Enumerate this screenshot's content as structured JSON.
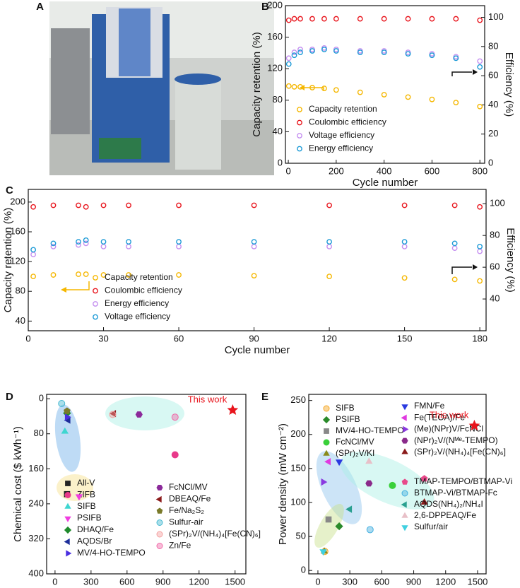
{
  "photo": {
    "label": "A"
  },
  "chart_data": [
    {
      "label": "B",
      "type": "scatter",
      "xlabel": "Cycle number",
      "ylabel": "Capacity retention (%)",
      "y2label": "Efficiency (%)",
      "xlim": [
        -12,
        820
      ],
      "xticks": [
        0,
        200,
        400,
        600,
        800
      ],
      "ylim": [
        0,
        200
      ],
      "yticks": [
        0,
        40,
        80,
        120,
        160,
        200
      ],
      "y2lim": [
        0,
        108
      ],
      "y2ticks": [
        0,
        20,
        40,
        60,
        80,
        100
      ],
      "marker": "open-circle",
      "x": [
        2,
        25,
        50,
        100,
        150,
        200,
        300,
        400,
        500,
        600,
        700,
        800
      ],
      "series": [
        {
          "name": "Capacity retention",
          "color": "#f5b700",
          "values": [
            98,
            97,
            97,
            96,
            95,
            93,
            90,
            87,
            84,
            81,
            77,
            72
          ]
        },
        {
          "name": "Coulombic efficiency",
          "color": "#e8141c",
          "axis": "y2",
          "values": [
            98,
            99,
            99,
            99,
            99,
            99,
            99,
            99,
            99,
            99,
            99,
            98
          ]
        },
        {
          "name": "Voltage efficiency",
          "color": "#c48ef0",
          "axis": "y2",
          "values": [
            72,
            76,
            78,
            78,
            79,
            78,
            77,
            77,
            76,
            75,
            73,
            70
          ]
        },
        {
          "name": "Energy efficiency",
          "color": "#1b9ad6",
          "axis": "y2",
          "values": [
            68,
            74,
            76,
            77,
            78,
            77,
            76,
            76,
            75,
            74,
            72,
            66
          ]
        }
      ]
    },
    {
      "label": "C",
      "type": "scatter",
      "xlabel": "Cycle number",
      "ylabel": "Capacity retention (%)",
      "y2label": "Efficiency (%)",
      "xlim": [
        0,
        182.5
      ],
      "xticks": [
        0,
        30,
        60,
        90,
        120,
        150,
        180
      ],
      "ylim": [
        27,
        217
      ],
      "yticks": [
        40,
        80,
        120,
        160,
        200
      ],
      "y2lim": [
        20,
        109
      ],
      "y2ticks": [
        40,
        60,
        80,
        100
      ],
      "marker": "open-circle",
      "x": [
        2,
        10,
        20,
        23,
        30,
        40,
        60,
        90,
        120,
        150,
        170,
        180
      ],
      "series": [
        {
          "name": "Capacity retention",
          "color": "#f5b700",
          "values": [
            100,
            102,
            103,
            103,
            102,
            102,
            102,
            101,
            100,
            98,
            96,
            94
          ]
        },
        {
          "name": "Coulombic efficiency",
          "color": "#e8141c",
          "axis": "y2",
          "values": [
            98,
            99,
            99,
            98,
            99,
            99,
            99,
            99,
            99,
            99,
            99,
            98
          ]
        },
        {
          "name": "Energy efficiency",
          "color": "#c48ef0",
          "axis": "y2",
          "values": [
            68,
            73,
            74,
            75,
            73,
            73,
            73,
            73,
            73,
            73,
            72,
            70
          ]
        },
        {
          "name": "Voltage efficiency",
          "color": "#1b9ad6",
          "axis": "y2",
          "values": [
            71,
            75,
            76,
            77,
            76,
            76,
            76,
            76,
            76,
            76,
            75,
            73
          ]
        }
      ]
    },
    {
      "label": "D",
      "type": "scatter",
      "xlabel": "Cycle number",
      "ylabel": "Chemical cost ($ kWh⁻¹)",
      "xlim": [
        -70,
        1590
      ],
      "xticks": [
        0,
        300,
        600,
        900,
        1200,
        1500
      ],
      "ylim": [
        -10,
        400
      ],
      "yticks": [
        0,
        80,
        160,
        240,
        320,
        400
      ],
      "yinvert": true,
      "series": [
        {
          "name": "All-V",
          "color": "#222222",
          "marker": "square",
          "x": [
            100
          ],
          "values": [
            218
          ]
        },
        {
          "name": "ZIFB",
          "color": "#e8398a",
          "marker": "circle",
          "x": [
            1000
          ],
          "values": [
            128
          ]
        },
        {
          "name": "SIFB",
          "color": "#3fd6d0",
          "marker": "triangle-up",
          "x": [
            82
          ],
          "values": [
            75
          ]
        },
        {
          "name": "PSIFB",
          "color": "#f03ce0",
          "marker": "triangle-down",
          "x": [
            200
          ],
          "values": [
            223
          ]
        },
        {
          "name": "DHAQ/Fe",
          "color": "#1f8a2c",
          "marker": "diamond",
          "x": [
            100
          ],
          "values": [
            33
          ]
        },
        {
          "name": "AQDS/Br",
          "color": "#1d2e9a",
          "marker": "triangle-left",
          "x": [
            110
          ],
          "values": [
            49
          ]
        },
        {
          "name": "MV/4-HO-TEMPO",
          "color": "#4a2fe0",
          "marker": "triangle-right",
          "x": [
            100
          ],
          "values": [
            42
          ]
        },
        {
          "name": "FcNCl/MV",
          "color": "#8b2a9a",
          "marker": "hexagon",
          "x": [
            700
          ],
          "values": [
            36
          ]
        },
        {
          "name": "DBEAQ/Fe",
          "color": "#8b1a1a",
          "marker": "triangle-left",
          "x": [
            490
          ],
          "values": [
            34
          ]
        },
        {
          "name": "Fe/Na₂S₂",
          "color": "#7a7a2a",
          "marker": "pentagon",
          "x": [
            100
          ],
          "values": [
            28
          ]
        },
        {
          "name": "Sulfur-air",
          "color": "#45b8d0",
          "marker": "half-circle",
          "x": [
            55
          ],
          "values": [
            11
          ]
        },
        {
          "name": "(SPr)₂V/(NH₄)₄[Fe(CN)₆]",
          "color": "#f4a0a0",
          "marker": "half-circle",
          "x": [
            480
          ],
          "values": [
            36
          ]
        },
        {
          "name": "Zn/Fe",
          "color": "#f06aa8",
          "marker": "half-circle",
          "x": [
            1000
          ],
          "values": [
            42
          ]
        }
      ],
      "highlight": {
        "label": "This work",
        "color": "#e8141c",
        "x": 1480,
        "value": 26
      }
    },
    {
      "label": "E",
      "type": "scatter",
      "xlabel": "Cycle Number",
      "ylabel": "Power density (mW cm⁻²)",
      "xlim": [
        -86,
        1580
      ],
      "xticks": [
        0,
        300,
        600,
        900,
        1200,
        1500
      ],
      "ylim": [
        -5,
        259
      ],
      "yticks": [
        0,
        50,
        100,
        150,
        200,
        250
      ],
      "series": [
        {
          "name": "SIFB",
          "color": "#f5a623",
          "marker": "half-circle",
          "x": [
            65
          ],
          "values": [
            28
          ]
        },
        {
          "name": "PSIFB",
          "color": "#2a8a2a",
          "marker": "diamond",
          "x": [
            200
          ],
          "values": [
            65
          ]
        },
        {
          "name": "MV/4-HO-TEMPO",
          "color": "#888888",
          "marker": "square",
          "x": [
            100
          ],
          "values": [
            75
          ]
        },
        {
          "name": "FcNCl/MV",
          "color": "#3ad03a",
          "marker": "circle",
          "x": [
            700
          ],
          "values": [
            125
          ]
        },
        {
          "name": "(SPr)₂V/KI",
          "color": "#8a8a1a",
          "marker": "triangle-up",
          "x": [
            60
          ],
          "values": [
            28
          ]
        },
        {
          "name": "FMN/Fe",
          "color": "#2a3ae0",
          "marker": "triangle-down",
          "x": [
            200
          ],
          "values": [
            160
          ]
        },
        {
          "name": "Fe(TEOA)/Fe",
          "color": "#e03ae0",
          "marker": "triangle-left",
          "x": [
            100
          ],
          "values": [
            160
          ]
        },
        {
          "name": "(Me)(NPr)V/FcNCl",
          "color": "#8a3ae0",
          "marker": "triangle-right",
          "x": [
            50
          ],
          "values": [
            130
          ]
        },
        {
          "name": "(NPr)₂V/(Nᴹᵉ-TEMPO)",
          "color": "#8a2a8a",
          "marker": "hexagon",
          "x": [
            480
          ],
          "values": [
            128
          ]
        },
        {
          "name": "(SPr)₂V/(NH₄)₄[Fe(CN)₆]",
          "color": "#8a1a1a",
          "marker": "triangle-up",
          "x": [
            1000
          ],
          "values": [
            100
          ]
        },
        {
          "name": "TMAP-TEMPO/BTMAP-Vi",
          "color": "#e84a8a",
          "marker": "pentagon",
          "x": [
            1000
          ],
          "values": [
            135
          ]
        },
        {
          "name": "BTMAP-Vi/BTMAP-Fc",
          "color": "#45b0e0",
          "marker": "half-circle",
          "x": [
            490
          ],
          "values": [
            60
          ]
        },
        {
          "name": "AQDS(NH₄)₂/NH₄I",
          "color": "#2aa090",
          "marker": "triangle-left",
          "x": [
            300
          ],
          "values": [
            90
          ]
        },
        {
          "name": "2,6-DPPEAQ/Fe",
          "color": "#e8c0c8",
          "marker": "triangle-up",
          "x": [
            480
          ],
          "values": [
            160
          ]
        },
        {
          "name": "Sulfur/air",
          "color": "#40d0e0",
          "marker": "triangle-down",
          "x": [
            50
          ],
          "values": [
            28
          ]
        }
      ],
      "highlight": {
        "label": "This work",
        "color": "#e8141c",
        "x": 1470,
        "value": 213
      }
    }
  ]
}
